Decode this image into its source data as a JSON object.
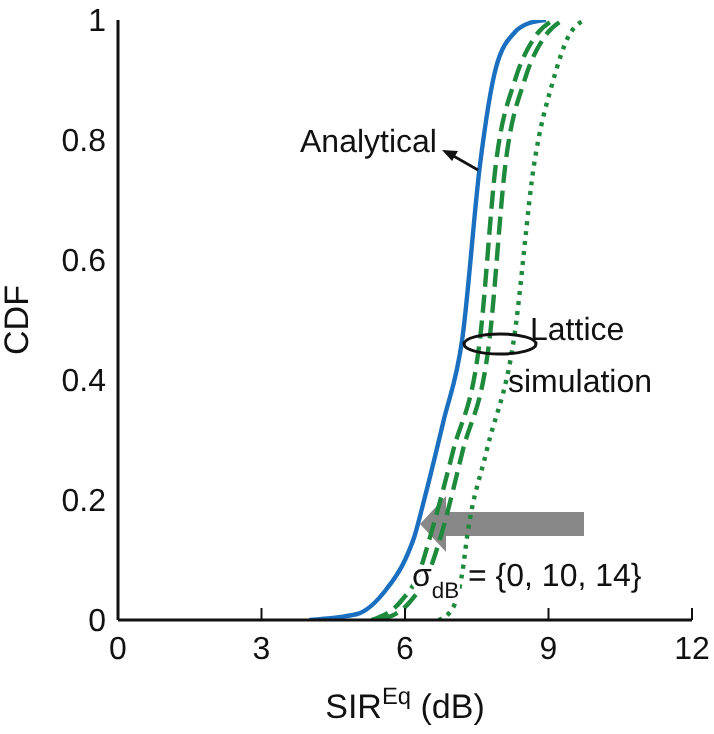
{
  "chart_data": {
    "type": "line",
    "xlabel": "SIR$^{Eq}$ (dB)",
    "ylabel": "CDF",
    "xlim": [
      0,
      12
    ],
    "xticks": [
      0,
      3,
      6,
      9,
      12
    ],
    "ylim": [
      0,
      1
    ],
    "yticks": [
      0,
      0.2,
      0.4,
      0.6,
      0.8,
      1
    ],
    "grid": false,
    "marker": "none",
    "annotations": [
      "Analytical",
      "Lattice simulation",
      "σ$_{dB}$ = {0, 10, 14}"
    ],
    "series": [
      {
        "color": "#1a6fc0",
        "line_style": "solid",
        "x": [
          4.0,
          5.0,
          5.6,
          6.0,
          6.2,
          6.4,
          6.8,
          7.2,
          7.57,
          7.9,
          8.3,
          8.6,
          8.95
        ],
        "values": [
          0,
          0.01,
          0.05,
          0.1,
          0.14,
          0.2,
          0.33,
          0.47,
          0.76,
          0.92,
          0.98,
          0.995,
          1
        ]
      },
      {
        "color": "#1e8a3c",
        "line_style": "dashed",
        "x": [
          5.3,
          5.9,
          6.3,
          6.53,
          7.0,
          7.57,
          7.9,
          8.3,
          8.7,
          9.1
        ],
        "values": [
          0,
          0.03,
          0.08,
          0.14,
          0.28,
          0.47,
          0.76,
          0.9,
          0.97,
          1
        ]
      },
      {
        "color": "#1e8a3c",
        "line_style": "dashed",
        "x": [
          5.5,
          6.1,
          6.5,
          6.75,
          7.2,
          7.77,
          8.1,
          8.5,
          8.9,
          9.3
        ],
        "values": [
          0,
          0.03,
          0.08,
          0.14,
          0.28,
          0.47,
          0.76,
          0.9,
          0.97,
          1
        ]
      },
      {
        "color": "#1e8a3c",
        "line_style": "dotted",
        "x": [
          6.7,
          7.0,
          7.2,
          7.3,
          7.7,
          8.28,
          8.7,
          9.1,
          9.4,
          9.75
        ],
        "values": [
          0,
          0.02,
          0.08,
          0.14,
          0.28,
          0.47,
          0.76,
          0.9,
          0.97,
          1
        ]
      }
    ]
  }
}
